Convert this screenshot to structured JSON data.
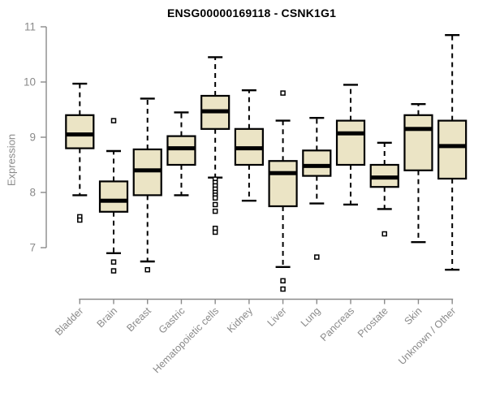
{
  "chart_data": {
    "type": "boxplot",
    "title": "ENSG00000169118 - CSNK1G1",
    "ylabel": "Expression",
    "xlabel": "",
    "ylim": [
      7,
      11
    ],
    "yticks": [
      7,
      8,
      9,
      10,
      11
    ],
    "grid": false,
    "legend": false,
    "categories": [
      "Bladder",
      "Brain",
      "Breast",
      "Gastric",
      "Hematopoietic cells",
      "Kidney",
      "Liver",
      "Lung",
      "Pancreas",
      "Prostate",
      "Skin",
      "Unknown / Other"
    ],
    "boxes": [
      {
        "category": "Bladder",
        "whisker_low": 7.95,
        "q1": 8.8,
        "median": 9.05,
        "q3": 9.4,
        "whisker_high": 9.97,
        "outliers": [
          7.56,
          7.5
        ]
      },
      {
        "category": "Brain",
        "whisker_low": 6.9,
        "q1": 7.65,
        "median": 7.85,
        "q3": 8.2,
        "whisker_high": 8.75,
        "outliers": [
          9.3,
          6.74,
          6.58
        ]
      },
      {
        "category": "Breast",
        "whisker_low": 6.75,
        "q1": 7.95,
        "median": 8.4,
        "q3": 8.78,
        "whisker_high": 9.7,
        "outliers": [
          6.6
        ]
      },
      {
        "category": "Gastric",
        "whisker_low": 7.95,
        "q1": 8.5,
        "median": 8.8,
        "q3": 9.02,
        "whisker_high": 9.45,
        "outliers": []
      },
      {
        "category": "Hematopoietic cells",
        "whisker_low": 8.27,
        "q1": 9.15,
        "median": 9.47,
        "q3": 9.75,
        "whisker_high": 10.45,
        "outliers": [
          8.24,
          8.18,
          8.12,
          8.06,
          8.0,
          7.95,
          7.9,
          7.78,
          7.66,
          7.35,
          7.28
        ]
      },
      {
        "category": "Kidney",
        "whisker_low": 7.85,
        "q1": 8.5,
        "median": 8.8,
        "q3": 9.15,
        "whisker_high": 9.85,
        "outliers": []
      },
      {
        "category": "Liver",
        "whisker_low": 6.65,
        "q1": 7.75,
        "median": 8.35,
        "q3": 8.57,
        "whisker_high": 9.3,
        "outliers": [
          9.8,
          6.4,
          6.25
        ]
      },
      {
        "category": "Lung",
        "whisker_low": 7.8,
        "q1": 8.3,
        "median": 8.48,
        "q3": 8.76,
        "whisker_high": 9.35,
        "outliers": [
          6.83
        ]
      },
      {
        "category": "Pancreas",
        "whisker_low": 7.78,
        "q1": 8.5,
        "median": 9.07,
        "q3": 9.3,
        "whisker_high": 9.95,
        "outliers": []
      },
      {
        "category": "Prostate",
        "whisker_low": 7.7,
        "q1": 8.1,
        "median": 8.27,
        "q3": 8.5,
        "whisker_high": 8.9,
        "outliers": [
          7.25
        ]
      },
      {
        "category": "Skin",
        "whisker_low": 7.1,
        "q1": 8.4,
        "median": 9.15,
        "q3": 9.4,
        "whisker_high": 9.6,
        "outliers": []
      },
      {
        "category": "Unknown / Other",
        "whisker_low": 6.6,
        "q1": 8.25,
        "median": 8.84,
        "q3": 9.3,
        "whisker_high": 10.85,
        "outliers": []
      }
    ],
    "colors": {
      "box_fill": "#EBE4C5",
      "box_stroke": "#000000",
      "median": "#000000",
      "whisker": "#000000",
      "axis": "#8a8a8a",
      "tick_label": "#8a8a8a",
      "title": "#000000",
      "background": "#FFFFFF"
    }
  }
}
